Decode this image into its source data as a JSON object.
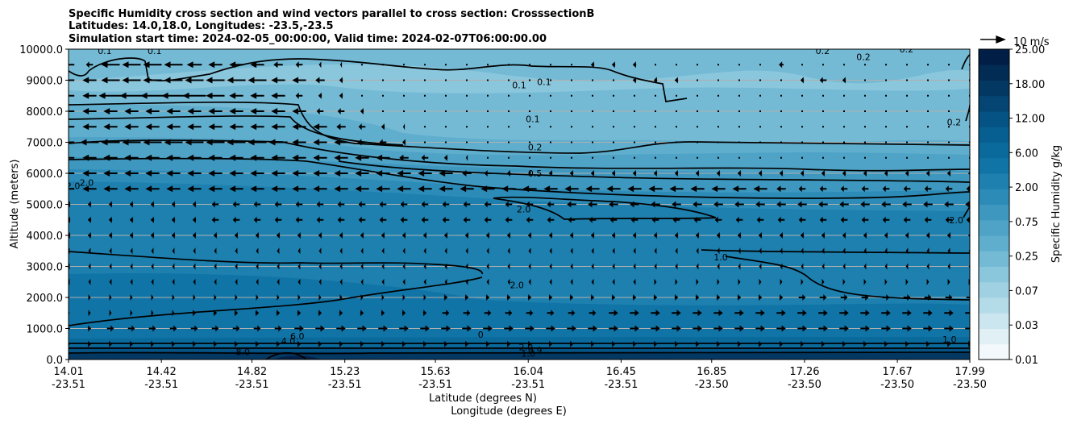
{
  "chart_data": {
    "type": "contour",
    "title_lines": [
      "Specific Humidity cross section and wind vectors parallel to cross section: CrosssectionB",
      "Latitudes: 14.0,18.0, Longitudes: -23.5,-23.5",
      "Simulation start time: 2024-02-05_00:00:00, Valid time: 2024-02-07T06:00:00.00"
    ],
    "xlabel_lat": "Latitude (degrees N)",
    "xlabel_lon": "Longitude (degrees E)",
    "ylabel": "Altitude (meters)",
    "ylim": [
      0,
      10000
    ],
    "yticks": [
      "0.0",
      "1000.0",
      "2000.0",
      "3000.0",
      "4000.0",
      "5000.0",
      "6000.0",
      "7000.0",
      "8000.0",
      "9000.0",
      "10000.0"
    ],
    "xticks": [
      {
        "lat": "14.01",
        "lon": "-23.51"
      },
      {
        "lat": "14.42",
        "lon": "-23.51"
      },
      {
        "lat": "14.82",
        "lon": "-23.51"
      },
      {
        "lat": "15.23",
        "lon": "-23.51"
      },
      {
        "lat": "15.63",
        "lon": "-23.51"
      },
      {
        "lat": "16.04",
        "lon": "-23.51"
      },
      {
        "lat": "16.45",
        "lon": "-23.51"
      },
      {
        "lat": "16.85",
        "lon": "-23.50"
      },
      {
        "lat": "17.26",
        "lon": "-23.50"
      },
      {
        "lat": "17.67",
        "lon": "-23.50"
      },
      {
        "lat": "17.99",
        "lon": "-23.50"
      }
    ],
    "colorbar": {
      "label": "Specific Humidity g/kg",
      "tick_labels": [
        "0.01",
        "0.03",
        "0.07",
        "0.25",
        "0.75",
        "2.00",
        "6.00",
        "12.00",
        "18.00",
        "25.00"
      ],
      "colors": [
        "#f2f8fb",
        "#e0f0f5",
        "#cbe6ef",
        "#b4dbe8",
        "#a0d1e2",
        "#8ac6dc",
        "#74bad5",
        "#60aecd",
        "#4ea3c6",
        "#3d97bf",
        "#2c8bb7",
        "#1d80af",
        "#1174a6",
        "#0b6a9c",
        "#075f91",
        "#055384",
        "#044573",
        "#033863",
        "#022c54",
        "#011f46"
      ]
    },
    "wind_key": {
      "label": "10 m/s",
      "speed": 10
    },
    "contour_labels": [
      {
        "text": "0.1",
        "x": 14.17,
        "y": 9950
      },
      {
        "text": "0.1",
        "x": 14.39,
        "y": 9950
      },
      {
        "text": "0.1",
        "x": 16.0,
        "y": 8850
      },
      {
        "text": "0.1",
        "x": 16.11,
        "y": 8950
      },
      {
        "text": "0.1",
        "x": 16.06,
        "y": 7750
      },
      {
        "text": "0.2",
        "x": 17.52,
        "y": 9750
      },
      {
        "text": "0.2",
        "x": 17.34,
        "y": 9950
      },
      {
        "text": "0.2",
        "x": 17.92,
        "y": 7650
      },
      {
        "text": "0.2",
        "x": 17.71,
        "y": 10000
      },
      {
        "text": "0.2",
        "x": 16.07,
        "y": 6850
      },
      {
        "text": "0.5",
        "x": 16.07,
        "y": 6000
      },
      {
        "text": "2.0",
        "x": 14.03,
        "y": 5600
      },
      {
        "text": "2.0",
        "x": 14.09,
        "y": 5700
      },
      {
        "text": "2.0",
        "x": 16.02,
        "y": 4850
      },
      {
        "text": "2.0",
        "x": 17.93,
        "y": 4500
      },
      {
        "text": "2.0",
        "x": 15.99,
        "y": 2400
      },
      {
        "text": "1.0",
        "x": 16.89,
        "y": 3300
      },
      {
        "text": "1.0",
        "x": 17.9,
        "y": 650
      },
      {
        "text": "4.0",
        "x": 14.98,
        "y": 600
      },
      {
        "text": "6.0",
        "x": 15.02,
        "y": 750
      },
      {
        "text": "8.0",
        "x": 14.78,
        "y": 250
      },
      {
        "text": "0",
        "x": 15.83,
        "y": 800
      },
      {
        "text": "2.0",
        "x": 16.03,
        "y": 400
      },
      {
        "text": "1.0",
        "x": 16.04,
        "y": 200
      },
      {
        "text": "0.9",
        "x": 16.07,
        "y": 300
      }
    ],
    "wind_rows": [
      {
        "alt": 9500,
        "u": [
          -2,
          -1.2,
          -3.2,
          -3.2,
          -3.2,
          -3.2,
          -2.6,
          -2.4,
          -2.4,
          -2.4,
          -1.6,
          -1.2,
          -0.4,
          -0.3,
          -0.1,
          0.1,
          0.1,
          0.1,
          0.1,
          0.1,
          0.1,
          0.1,
          0.1,
          0.1,
          0.1,
          -0.6,
          -0.6,
          -0.6,
          0.1,
          0.1,
          0.1,
          0.1,
          0.1,
          0.1,
          -0.8,
          -0.2,
          0.1,
          0.1,
          0.1,
          0.1,
          0.1,
          0.1,
          0.1,
          0.1
        ]
      },
      {
        "alt": 9000,
        "u": [
          -2,
          -2.4,
          -3.2,
          -3.2,
          -3.2,
          -3.2,
          -3.2,
          -3.2,
          -3.2,
          -3.2,
          -2.4,
          -2.4,
          -1.6,
          -0.6,
          -0.2,
          0.1,
          0.1,
          0.1,
          0.1,
          0.1,
          0.1,
          0.1,
          0.1,
          0.1,
          0.1,
          0.1,
          0.1,
          -0.6,
          -0.6,
          -0.6,
          0.1,
          0.1,
          0.1,
          0.1,
          0.1,
          -0.6,
          -1.2,
          -0.6,
          0.1,
          0.1,
          0.1,
          0.1,
          0.1,
          0.1
        ]
      },
      {
        "alt": 8500,
        "u": [
          -2,
          -2.4,
          -4,
          -4,
          -4,
          -4,
          -4,
          -3.2,
          -2.4,
          -2.4,
          -2.4,
          -1.2,
          -0.6,
          -0.6,
          -0.2,
          0.1,
          0.1,
          0.1,
          0.1,
          0.1,
          0.1,
          0.1,
          0.1,
          0.1,
          0.1,
          0.1,
          0.1,
          0.1,
          0.1,
          0.1,
          0.1,
          0.1,
          0.1,
          0.1,
          0.1,
          0.1,
          0.1,
          0.1,
          0.1,
          0.1,
          0.1,
          0.1,
          0.1,
          0.1
        ]
      },
      {
        "alt": 8000,
        "u": [
          -2,
          -2.4,
          -2.4,
          -2.4,
          -2.4,
          -2.4,
          -2.4,
          -2.4,
          -2.4,
          -2.4,
          -2.4,
          -2.4,
          -1.2,
          -1.2,
          -0.6,
          -0.2,
          0.1,
          0.1,
          0.1,
          0.1,
          0.1,
          0.1,
          0.1,
          0.1,
          0.1,
          0.1,
          0.1,
          0.1,
          0.1,
          0.1,
          0.1,
          0.1,
          0.1,
          0.1,
          0.1,
          0.1,
          0.1,
          0.1,
          0.1,
          0.1,
          0.1,
          0.1,
          0.1,
          0.1
        ]
      },
      {
        "alt": 7500,
        "u": [
          -2,
          -2.4,
          -2.4,
          -2.4,
          -2.4,
          -2.4,
          -2.4,
          -2.4,
          -2.4,
          -2.4,
          -2.4,
          -2.4,
          -2.4,
          -1.6,
          -1.2,
          -0.6,
          -0.3,
          0.1,
          0.1,
          0.1,
          0.1,
          0.1,
          0.1,
          0.1,
          0.1,
          0.1,
          0.1,
          0.1,
          0.1,
          0.1,
          0.1,
          0.1,
          0.1,
          0.1,
          0.1,
          0.1,
          0.1,
          0.1,
          0.1,
          0.1,
          0.1,
          0.1,
          0.1,
          0.1
        ]
      },
      {
        "alt": 7000,
        "u": [
          -2,
          -3.2,
          -3.2,
          -3.2,
          -3.2,
          -3.2,
          -3.2,
          -3.2,
          -3.2,
          -3.2,
          -3.2,
          -2.4,
          -2.4,
          -2.4,
          -1.6,
          -1.2,
          -0.6,
          -0.2,
          0.1,
          0.1,
          0.1,
          0.1,
          0.1,
          0.1,
          0.1,
          0.1,
          0.1,
          0.1,
          0.1,
          0.1,
          0.1,
          0.1,
          0.1,
          0.1,
          0.1,
          0.1,
          0.1,
          0.1,
          0.1,
          0.1,
          0.1,
          0.1,
          0.1,
          0.1
        ]
      },
      {
        "alt": 6500,
        "u": [
          -2,
          -2.4,
          -2.4,
          -2.4,
          -2.4,
          -2.4,
          -2.4,
          -2.4,
          -2.4,
          -2.4,
          -2.4,
          -2.4,
          -2.4,
          -2.4,
          -2.4,
          -2.4,
          -1.6,
          -1.2,
          -0.6,
          -0.3,
          0.1,
          0.1,
          0.1,
          0.1,
          0.1,
          0.1,
          0.1,
          0.1,
          0.1,
          0.1,
          0.1,
          0.1,
          0.1,
          0.1,
          0.1,
          0.1,
          0.1,
          0.1,
          0.1,
          0.1,
          0.1,
          0.1,
          0.1,
          0.1
        ]
      },
      {
        "alt": 6000,
        "u": [
          -2,
          -2.4,
          -2.4,
          -2.4,
          -2.4,
          -2.4,
          -2.4,
          -2.4,
          -2.4,
          -2.4,
          -2.4,
          -2.4,
          -2.4,
          -2.4,
          -2.4,
          -2.4,
          -2.4,
          -2.4,
          -2.4,
          -1.6,
          -1.2,
          -0.6,
          -0.4,
          -0.6,
          -0.6,
          -0.6,
          -0.6,
          -0.6,
          -0.6,
          -0.6,
          -0.6,
          -0.6,
          -0.6,
          -0.6,
          -0.6,
          -0.6,
          -0.6,
          -0.6,
          -0.6,
          -0.6,
          -0.6,
          -0.6,
          -0.6,
          -0.6
        ]
      },
      {
        "alt": 5500,
        "u": [
          -2,
          -2.4,
          -2.4,
          -2.4,
          -2.4,
          -2.4,
          -2.4,
          -2.4,
          -2.4,
          -2.4,
          -2.4,
          -2.4,
          -2.4,
          -2.4,
          -2.4,
          -2.4,
          -2.4,
          -2.4,
          -2.4,
          -2.4,
          -2.4,
          -2.4,
          -2.4,
          -2.4,
          -2.4,
          -2.4,
          -2.4,
          -2.4,
          -2.4,
          -2.4,
          -2.4,
          -2.4,
          -2.4,
          -2.4,
          -1.6,
          -1.2,
          -1.2,
          -1.2,
          -1.2,
          -1.2,
          -1.2,
          -1.2,
          -1.2,
          -1.2
        ]
      },
      {
        "alt": 5000,
        "u": [
          -0.6,
          -0.6,
          -0.6,
          -0.6,
          -0.6,
          -0.6,
          -0.6,
          -1.2,
          -1.2,
          -1.2,
          -1.2,
          -1.2,
          -1.2,
          -1.2,
          -1.2,
          -1.2,
          -1.2,
          -1.2,
          -1.2,
          -1.2,
          -1.2,
          -1.2,
          -1.2,
          -1.2,
          -1.6,
          -1.6,
          -1.6,
          -1.6,
          -1.6,
          -1.6,
          -1.6,
          -1.6,
          -1.6,
          -1.6,
          -1.6,
          -1.6,
          -1.6,
          -1.6,
          -1.6,
          -1.6,
          -1.6,
          -1.6,
          -1.6,
          -1.6
        ]
      },
      {
        "alt": 4500,
        "u": [
          -0.6,
          -0.6,
          -0.6,
          -0.6,
          -0.6,
          -0.6,
          -0.6,
          -1.2,
          -1.2,
          -1.2,
          -1.2,
          -1.2,
          -1.2,
          -1.2,
          -1.2,
          -1.2,
          -1.2,
          -1.2,
          -1.2,
          -1.2,
          -1.2,
          -1.2,
          -1.2,
          -1.2,
          -1.2,
          -1.2,
          -1.2,
          -1.2,
          -1.2,
          -1.2,
          -1.2,
          -1.2,
          -1.2,
          -1.2,
          -1.2,
          -1.2,
          -1.2,
          -1.2,
          -1.2,
          -1.2,
          -1.2,
          -1.2,
          -1.2,
          -1.2
        ]
      },
      {
        "alt": 4000,
        "u": [
          -0.6,
          -0.6,
          -0.6,
          -0.6,
          -0.6,
          -0.6,
          -0.6,
          -0.6,
          -0.6,
          -0.6,
          -0.6,
          -0.6,
          -0.6,
          -0.6,
          -0.6,
          -0.6,
          -0.6,
          -0.6,
          -0.6,
          -0.6,
          -0.6,
          -0.6,
          -0.6,
          -0.6,
          -0.6,
          -0.6,
          -0.6,
          -0.6,
          -0.6,
          -0.6,
          -0.6,
          -0.6,
          -0.6,
          -0.6,
          -0.6,
          -0.6,
          -0.6,
          -0.6,
          -0.6,
          -0.6,
          -0.6,
          -0.6,
          -0.6,
          -0.6
        ]
      },
      {
        "alt": 3500,
        "u": [
          -0.4,
          -0.4,
          -0.4,
          -0.4,
          -0.4,
          -0.4,
          -0.4,
          -0.4,
          -0.4,
          -0.4,
          -0.4,
          -0.4,
          -0.4,
          -0.4,
          -0.4,
          -0.4,
          -0.4,
          -0.4,
          -0.4,
          -0.4,
          -0.4,
          -0.4,
          -0.4,
          -0.4,
          -0.4,
          -0.4,
          -0.4,
          -0.4,
          -0.4,
          -0.4,
          -0.4,
          -0.4,
          -0.4,
          -0.4,
          -0.4,
          -0.4,
          -0.4,
          -0.4,
          -0.4,
          -0.4,
          -0.4,
          -0.4,
          -0.4,
          -0.4
        ]
      },
      {
        "alt": 3000,
        "u": [
          -0.4,
          -0.4,
          -0.4,
          -0.4,
          -0.4,
          -0.4,
          -0.4,
          -0.4,
          -0.4,
          -0.4,
          -0.4,
          -0.4,
          -0.4,
          -0.4,
          -0.4,
          -0.4,
          -0.4,
          -0.4,
          -0.4,
          -0.4,
          -0.4,
          -0.4,
          -0.4,
          -0.4,
          -0.4,
          -0.4,
          -0.4,
          -0.4,
          -0.4,
          -0.4,
          -0.4,
          -0.4,
          -0.4,
          -0.4,
          -0.4,
          -0.4,
          -0.4,
          -0.4,
          -0.4,
          -0.4,
          -0.4,
          -0.4,
          -0.4,
          -0.4
        ]
      },
      {
        "alt": 2500,
        "u": [
          -0.4,
          -0.4,
          -0.4,
          -0.4,
          -0.4,
          -0.4,
          -0.4,
          -0.4,
          -0.4,
          -0.4,
          -0.4,
          -0.4,
          -0.4,
          -0.4,
          -0.4,
          -0.4,
          -0.4,
          -0.4,
          -0.4,
          -0.4,
          -0.4,
          -0.4,
          -0.4,
          -0.4,
          -0.4,
          -0.4,
          -0.4,
          -0.4,
          0.4,
          0.4,
          0.4,
          0.4,
          0.4,
          0.4,
          0.4,
          0.4,
          0.4,
          0.4,
          0.4,
          0.4,
          0.4,
          0.4,
          0.4,
          0.4
        ]
      },
      {
        "alt": 2000,
        "u": [
          0.4,
          0.4,
          0.4,
          0.4,
          0.4,
          0.4,
          0.4,
          0.4,
          0.4,
          0.4,
          0.4,
          0.4,
          0.4,
          0.4,
          0.4,
          0.4,
          0.4,
          0.4,
          0.6,
          0.6,
          0.6,
          0.6,
          0.6,
          0.6,
          0.6,
          0.6,
          0.6,
          0.6,
          0.6,
          0.6,
          0.6,
          0.6,
          0.6,
          0.6,
          0.6,
          1.2,
          1.2,
          1.2,
          1.2,
          1.2,
          1.2,
          1.2,
          1.2,
          1.2
        ]
      },
      {
        "alt": 1500,
        "u": [
          0.4,
          0.4,
          0.4,
          0.4,
          0.4,
          0.4,
          0.6,
          0.6,
          0.6,
          0.6,
          0.6,
          0.6,
          0.6,
          0.6,
          0.6,
          0.6,
          0.6,
          0.6,
          1.2,
          1.2,
          1.2,
          1.2,
          1.2,
          1.2,
          1.2,
          1.2,
          1.6,
          1.6,
          1.6,
          1.6,
          1.6,
          1.6,
          1.6,
          1.6,
          1.6,
          1.6,
          1.6,
          1.6,
          1.6,
          1.6,
          1.6,
          1.6,
          1.6,
          1.6
        ]
      },
      {
        "alt": 1000,
        "u": [
          0.6,
          0.6,
          1.2,
          1.2,
          1.2,
          1.2,
          1.2,
          1.2,
          1.2,
          1.2,
          1.2,
          1.6,
          1.6,
          1.6,
          1.6,
          1.6,
          1.6,
          1.6,
          1.6,
          1.6,
          1.6,
          1.6,
          1.6,
          1.6,
          1.6,
          1.6,
          1.6,
          1.6,
          1.6,
          1.6,
          1.6,
          1.6,
          1.6,
          1.6,
          1.6,
          1.6,
          1.6,
          1.6,
          1.6,
          1.6,
          1.6,
          1.6,
          1.6,
          1.6
        ]
      },
      {
        "alt": 500,
        "u": [
          0.6,
          0.6,
          0.6,
          0.6,
          0.6,
          0.6,
          0.6,
          0.6,
          0.6,
          0.6,
          0.6,
          0.6,
          0.6,
          0.6,
          0.6,
          0.6,
          0.6,
          0.6,
          0.6,
          0.6,
          0.6,
          0.6,
          0.6,
          0.6,
          0.6,
          0.6,
          0.6,
          0.6,
          0.6,
          0.6,
          0.6,
          0.6,
          0.6,
          0.6,
          0.6,
          0.6,
          0.6,
          0.6,
          0.6,
          0.6,
          0.6,
          0.6,
          0.6,
          0.6
        ]
      }
    ]
  }
}
